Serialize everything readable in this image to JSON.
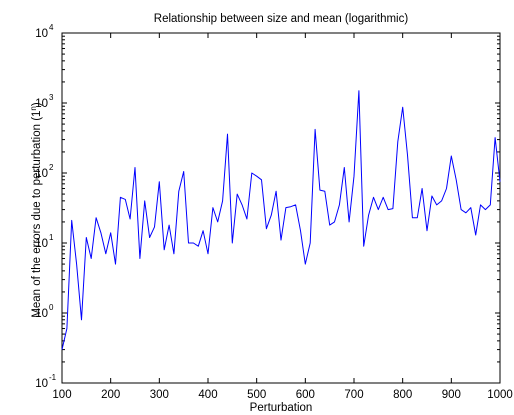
{
  "chart_data": {
    "type": "line",
    "title": "Relationship between size and mean (logarithmic)",
    "xlabel": "Perturbation",
    "ylabel": "Mean of the errors due to perturbation (1^n)",
    "xlim": [
      100,
      1000
    ],
    "ylim": [
      0.1,
      10000
    ],
    "yscale": "log",
    "grid": false,
    "line_color": "#0000ff",
    "axes_color": "#000000",
    "x_ticks": [
      "100",
      "200",
      "300",
      "400",
      "500",
      "600",
      "700",
      "800",
      "900",
      "1000"
    ],
    "y_ticks": [
      {
        "base": "10",
        "exp": "-1"
      },
      {
        "base": "10",
        "exp": "0"
      },
      {
        "base": "10",
        "exp": "1"
      },
      {
        "base": "10",
        "exp": "2"
      },
      {
        "base": "10",
        "exp": "3"
      },
      {
        "base": "10",
        "exp": "4"
      }
    ],
    "series": [
      {
        "x": [
          100,
          110,
          120,
          130,
          140,
          150,
          160,
          170,
          180,
          190,
          200,
          210,
          220,
          230,
          240,
          250,
          260,
          270,
          280,
          290,
          300,
          310,
          320,
          330,
          340,
          350,
          360,
          370,
          380,
          390,
          400,
          410,
          420,
          430,
          440,
          450,
          460,
          470,
          480,
          490,
          500,
          510,
          520,
          530,
          540,
          550,
          560,
          570,
          580,
          590,
          600,
          610,
          620,
          630,
          640,
          650,
          660,
          670,
          680,
          690,
          700,
          710,
          720,
          730,
          740,
          750,
          760,
          770,
          780,
          790,
          800,
          810,
          820,
          830,
          840,
          850,
          860,
          870,
          880,
          890,
          900,
          910,
          920,
          930,
          940,
          950,
          960,
          970,
          980,
          990,
          1000
        ],
        "y": [
          0.3,
          0.6,
          21,
          5,
          0.8,
          12,
          6,
          23,
          14,
          7,
          14,
          5,
          45,
          42,
          22,
          120,
          6,
          40,
          12,
          17,
          75,
          8,
          18,
          7,
          55,
          105,
          10,
          10,
          9,
          15,
          7,
          32,
          20,
          40,
          360,
          10,
          50,
          35,
          22,
          100,
          90,
          80,
          16,
          25,
          55,
          11,
          32,
          33,
          35,
          15,
          5,
          10,
          420,
          57,
          55,
          18,
          20,
          35,
          120,
          20,
          90,
          1500,
          9,
          25,
          45,
          30,
          45,
          30,
          31,
          280,
          870,
          180,
          23,
          23,
          60,
          15,
          47,
          35,
          40,
          60,
          175,
          80,
          30,
          27,
          32,
          13,
          35,
          30,
          35,
          320,
          75
        ]
      }
    ]
  }
}
